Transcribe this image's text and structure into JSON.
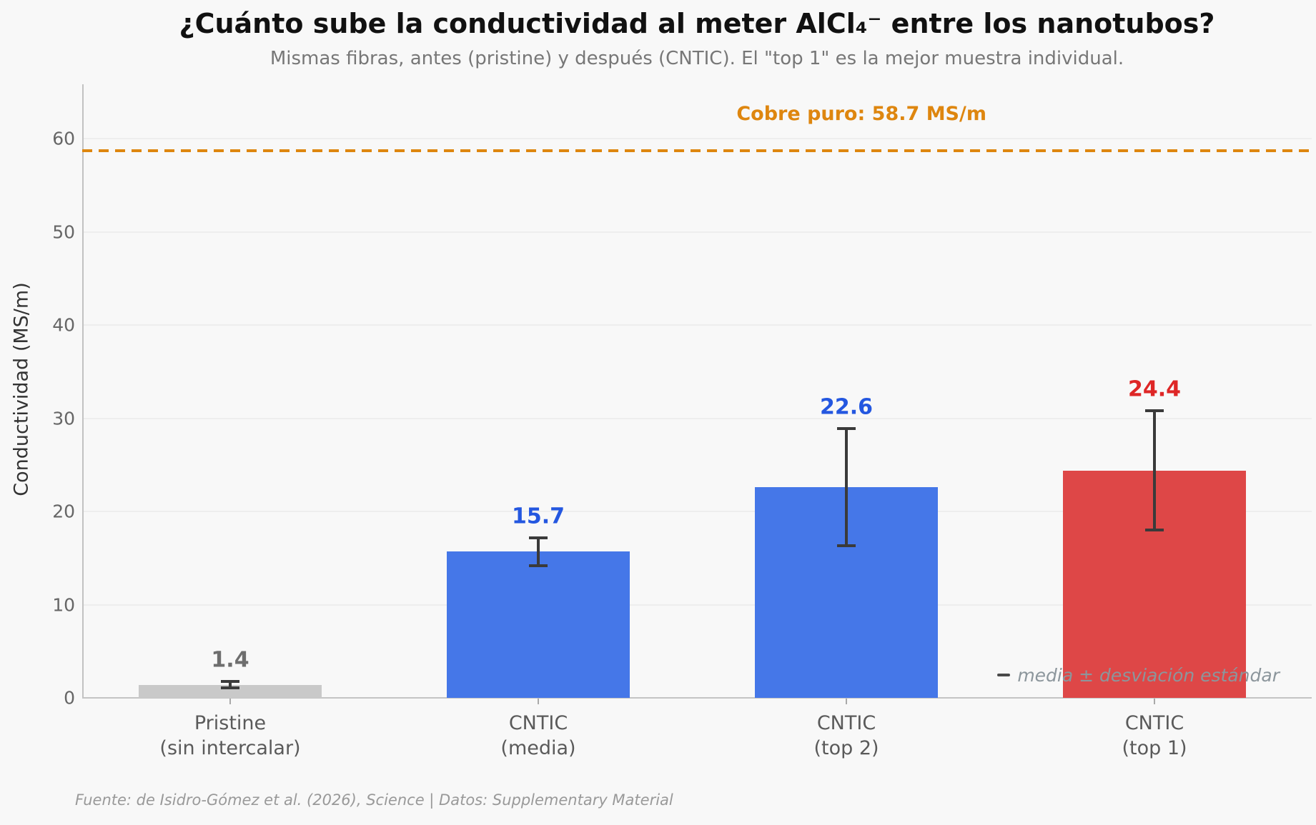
{
  "chart_data": {
    "type": "bar",
    "title": "¿Cuánto sube la conductividad al meter AlCl₄⁻ entre los nanotubos?",
    "subtitle": "Mismas fibras, antes (pristine) y después (CNTIC). El \"top 1\" es la mejor muestra individual.",
    "ylabel": "Conductividad (MS/m)",
    "xlabel": "",
    "ylim": [
      0,
      63
    ],
    "yticks": [
      0,
      10,
      20,
      30,
      40,
      50,
      60
    ],
    "grid": "horizontal",
    "categories": [
      [
        "Pristine",
        "(sin intercalar)"
      ],
      [
        "CNTIC",
        "(media)"
      ],
      [
        "CNTIC",
        "(top 2)"
      ],
      [
        "CNTIC",
        "(top 1)"
      ]
    ],
    "values": [
      1.4,
      15.7,
      22.6,
      24.4
    ],
    "errors": [
      0.35,
      1.5,
      6.3,
      6.4
    ],
    "value_labels": [
      "1.4",
      "15.7",
      "22.6",
      "24.4"
    ],
    "bar_colors": [
      "#C9C9C9",
      "#4577E8",
      "#4577E8",
      "#DE4747"
    ],
    "value_label_colors": [
      "#6E6E6E",
      "#2457E0",
      "#2457E0",
      "#DE2626"
    ],
    "error_bar_color": "#3A3A3A",
    "reference_line": {
      "value": 58.7,
      "label": "Cobre puro: 58.7 MS/m",
      "color": "#DE860F",
      "style": "dashed"
    },
    "legend": {
      "position": "lower right",
      "text": "media ± desviación estándar"
    }
  },
  "footer": {
    "source": "Fuente: de Isidro-Gómez et al. (2026), Science | Datos: Supplementary Material"
  }
}
